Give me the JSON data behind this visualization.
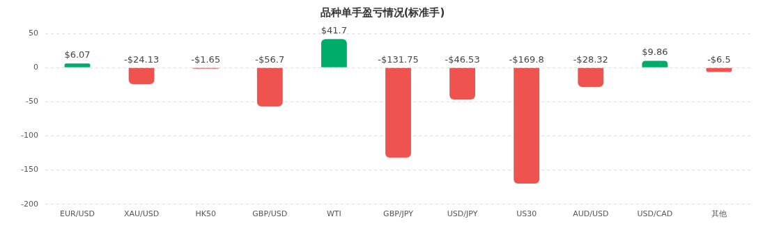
{
  "chart_data": {
    "type": "bar",
    "title": "品种单手盈亏情况(标准手)",
    "categories": [
      "EUR/USD",
      "XAU/USD",
      "HK50",
      "GBP/USD",
      "WTI",
      "GBP/JPY",
      "USD/JPY",
      "US30",
      "AUD/USD",
      "USD/CAD",
      "其他"
    ],
    "values": [
      6.07,
      -24.13,
      -1.65,
      -56.7,
      41.7,
      -131.75,
      -46.53,
      -169.8,
      -28.32,
      9.86,
      -6.5
    ],
    "value_labels": [
      "$6.07",
      "-$24.13",
      "-$1.65",
      "-$56.7",
      "$41.7",
      "-$131.75",
      "-$46.53",
      "-$169.8",
      "-$28.32",
      "$9.86",
      "-$6.5"
    ],
    "colors": [
      "#00ac69",
      "#ee534f",
      "#ee534f",
      "#ee534f",
      "#00ac69",
      "#ee534f",
      "#ee534f",
      "#ee534f",
      "#ee534f",
      "#00ac69",
      "#ee534f"
    ],
    "ylim": [
      -200,
      50
    ],
    "yticks": [
      -200,
      -150,
      -100,
      -50,
      0,
      50
    ],
    "grid": "y",
    "legend": false
  }
}
